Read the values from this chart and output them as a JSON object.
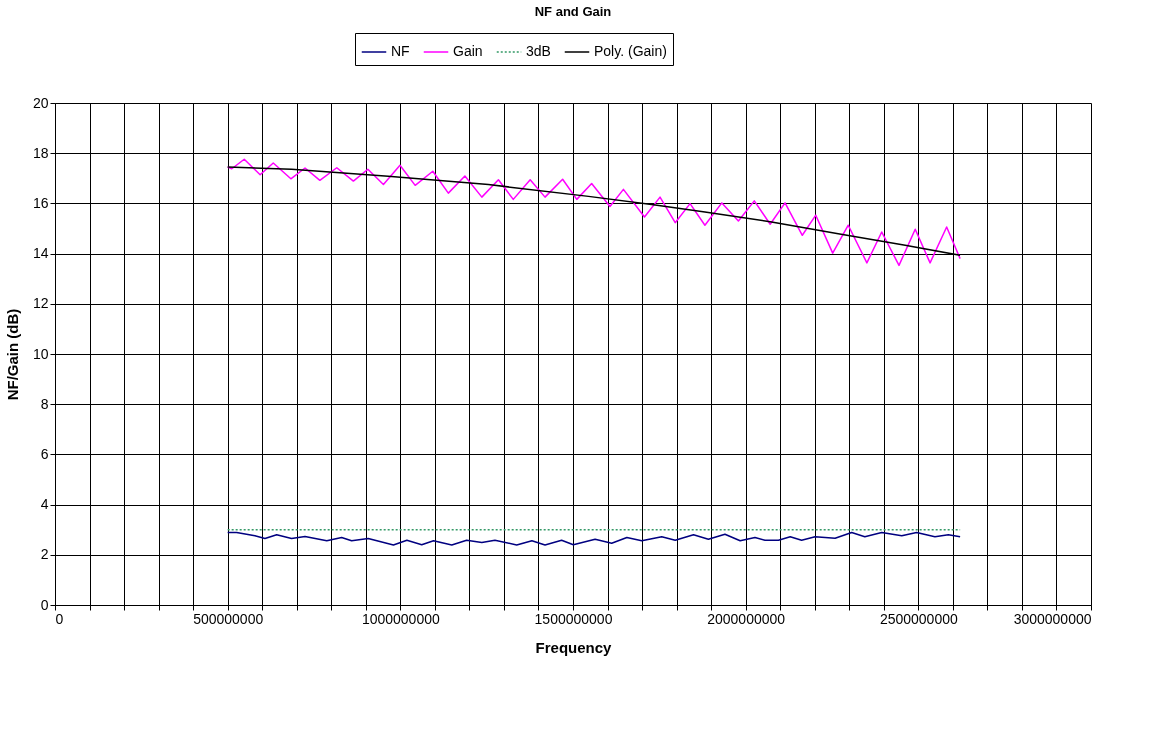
{
  "chart_data": {
    "type": "line",
    "title": "NF and Gain",
    "xlabel": "Frequency",
    "ylabel": "NF/Gain (dB)",
    "xlim": [
      0,
      3000000000
    ],
    "ylim": [
      0,
      20
    ],
    "xticks": [
      0,
      {
        "value": 100000000,
        "label": null
      },
      {
        "value": 200000000,
        "label": null
      },
      {
        "value": 300000000,
        "label": null
      },
      {
        "value": 400000000,
        "label": null
      },
      500000000,
      {
        "value": 600000000,
        "label": null
      },
      {
        "value": 700000000,
        "label": null
      },
      {
        "value": 800000000,
        "label": null
      },
      {
        "value": 900000000,
        "label": null
      },
      1000000000,
      {
        "value": 1100000000,
        "label": null
      },
      {
        "value": 1200000000,
        "label": null
      },
      {
        "value": 1300000000,
        "label": null
      },
      {
        "value": 1400000000,
        "label": null
      },
      1500000000,
      {
        "value": 1600000000,
        "label": null
      },
      {
        "value": 1700000000,
        "label": null
      },
      {
        "value": 1800000000,
        "label": null
      },
      {
        "value": 1900000000,
        "label": null
      },
      2000000000,
      {
        "value": 2100000000,
        "label": null
      },
      {
        "value": 2200000000,
        "label": null
      },
      {
        "value": 2300000000,
        "label": null
      },
      {
        "value": 2400000000,
        "label": null
      },
      2500000000,
      {
        "value": 2600000000,
        "label": null
      },
      {
        "value": 2700000000,
        "label": null
      },
      {
        "value": 2800000000,
        "label": null
      },
      {
        "value": 2900000000,
        "label": null
      },
      3000000000
    ],
    "yticks": [
      0,
      2,
      4,
      6,
      8,
      10,
      12,
      14,
      16,
      18,
      20
    ],
    "grid": true,
    "legend": "top",
    "marker": "none",
    "series": [
      {
        "name": "NF",
        "color": "#000080",
        "line_style": "solid",
        "x": [
          500000000,
          526000000,
          579000000,
          608000000,
          642000000,
          685000000,
          724000000,
          787000000,
          830000000,
          859000000,
          907000000,
          980000000,
          1019000000,
          1062000000,
          1096000000,
          1149000000,
          1192000000,
          1236000000,
          1274000000,
          1337000000,
          1381000000,
          1419000000,
          1467000000,
          1501000000,
          1564000000,
          1612000000,
          1656000000,
          1699000000,
          1757000000,
          1796000000,
          1849000000,
          1892000000,
          1940000000,
          1984000000,
          2027000000,
          2056000000,
          2095000000,
          2129000000,
          2162000000,
          2201000000,
          2259000000,
          2307000000,
          2345000000,
          2394000000,
          2452000000,
          2495000000,
          2548000000,
          2587000000,
          2621000000
        ],
        "values": [
          2.89,
          2.89,
          2.76,
          2.65,
          2.8,
          2.65,
          2.73,
          2.56,
          2.69,
          2.56,
          2.65,
          2.39,
          2.58,
          2.4,
          2.56,
          2.39,
          2.58,
          2.49,
          2.58,
          2.39,
          2.56,
          2.39,
          2.58,
          2.4,
          2.62,
          2.46,
          2.69,
          2.56,
          2.72,
          2.58,
          2.8,
          2.62,
          2.82,
          2.56,
          2.69,
          2.58,
          2.58,
          2.72,
          2.58,
          2.72,
          2.66,
          2.89,
          2.72,
          2.89,
          2.76,
          2.89,
          2.72,
          2.8,
          2.72
        ]
      },
      {
        "name": "Gain",
        "color": "#ff00ff",
        "line_style": "solid",
        "x": [
          500000000,
          512000000,
          548000000,
          594000000,
          632000000,
          683000000,
          724000000,
          767000000,
          816000000,
          864000000,
          906000000,
          951000000,
          999000000,
          1043000000,
          1094000000,
          1139000000,
          1187000000,
          1236000000,
          1284000000,
          1327000000,
          1376000000,
          1419000000,
          1470000000,
          1511000000,
          1554000000,
          1607000000,
          1646000000,
          1707000000,
          1752000000,
          1796000000,
          1839000000,
          1882000000,
          1931000000,
          1979000000,
          2025000000,
          2071000000,
          2114000000,
          2164000000,
          2203000000,
          2252000000,
          2297000000,
          2351000000,
          2394000000,
          2444000000,
          2491000000,
          2534000000,
          2582000000,
          2621000000
        ],
        "values": [
          17.45,
          17.38,
          17.76,
          17.14,
          17.61,
          16.98,
          17.41,
          16.92,
          17.42,
          16.89,
          17.36,
          16.75,
          17.52,
          16.72,
          17.28,
          16.41,
          17.09,
          16.25,
          16.94,
          16.16,
          16.94,
          16.25,
          16.96,
          16.16,
          16.79,
          15.88,
          16.56,
          15.46,
          16.25,
          15.23,
          15.99,
          15.13,
          16.02,
          15.3,
          16.1,
          15.17,
          16.02,
          14.73,
          15.53,
          14.02,
          15.13,
          13.63,
          14.86,
          13.53,
          14.97,
          13.63,
          15.06,
          13.8
        ]
      },
      {
        "name": "3dB",
        "color": "#339966",
        "line_style": "dotted",
        "x": [
          500000000,
          2621000000
        ],
        "values": [
          3,
          3
        ]
      },
      {
        "name": "Poly. (Gain)",
        "color": "#000000",
        "line_style": "solid",
        "x": [
          500000000,
          685000000,
          965000000,
          1255000000,
          1545000000,
          1733000000,
          1882000000,
          2075000000,
          2268000000,
          2462000000,
          2621000000
        ],
        "values": [
          17.45,
          17.36,
          17.08,
          16.75,
          16.28,
          15.95,
          15.66,
          15.26,
          14.79,
          14.33,
          13.93
        ]
      }
    ]
  }
}
